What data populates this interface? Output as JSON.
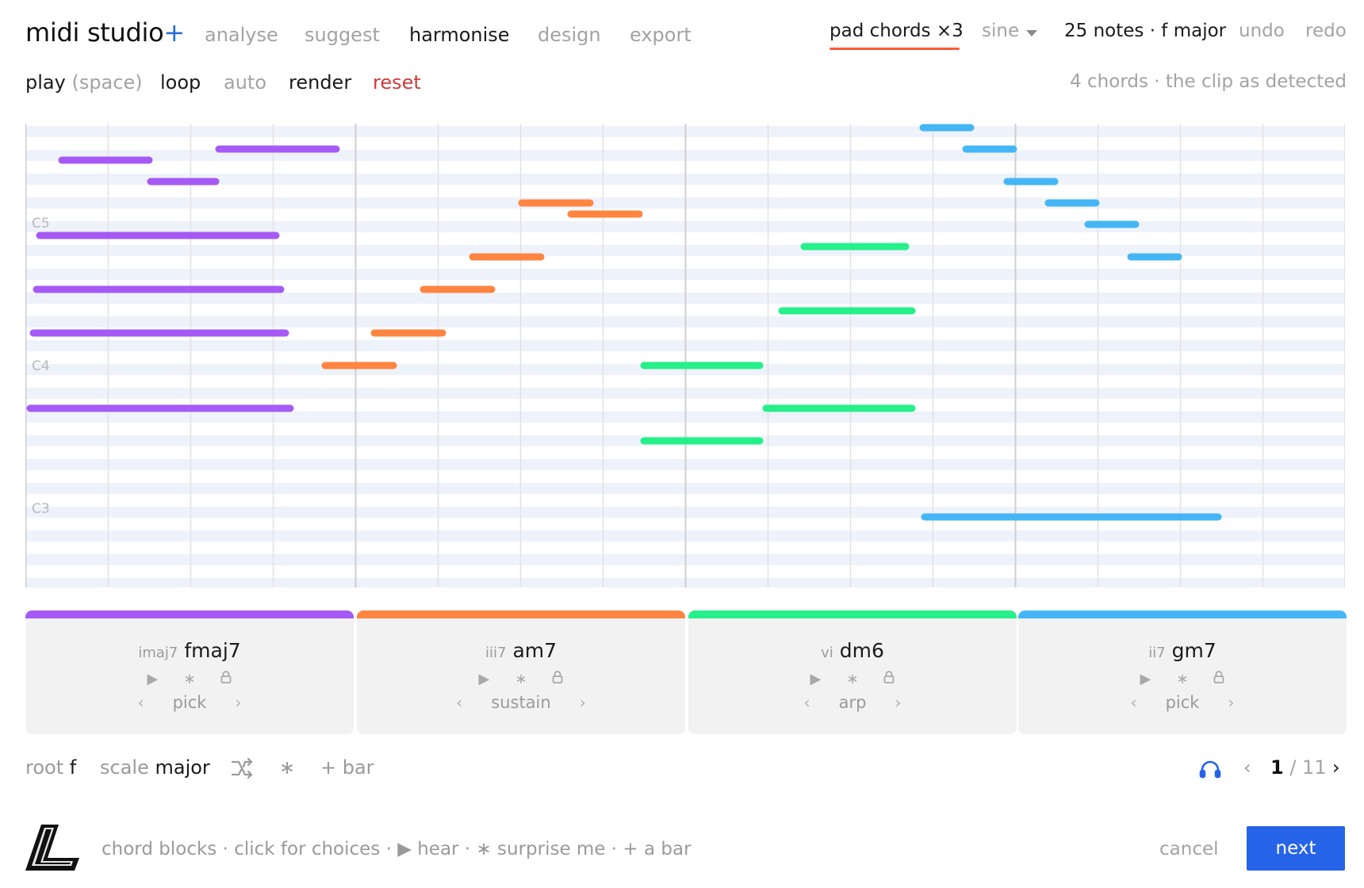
{
  "app": {
    "title": "midi studio",
    "title_plus": "+"
  },
  "nav": {
    "items": [
      "analyse",
      "suggest",
      "harmonise",
      "design",
      "export"
    ],
    "active": "harmonise"
  },
  "header_right": {
    "preset": "pad chords ×3",
    "waveform": "sine",
    "notes_info": "25 notes · f major",
    "undo": "undo",
    "redo": "redo"
  },
  "toolbar": {
    "play": "play",
    "play_hint": "(space)",
    "loop": "loop",
    "auto": "auto",
    "render": "render",
    "reset": "reset",
    "status": "4 chords · the clip as detected"
  },
  "roll": {
    "octave_labels": [
      "C5",
      "C4",
      "C3"
    ],
    "bars": 4,
    "beats_per_bar": 4
  },
  "chords": [
    {
      "roman": "imaj7",
      "name": "fmaj7",
      "mode": "pick",
      "color": "#a55af5"
    },
    {
      "roman": "iii7",
      "name": "am7",
      "mode": "sustain",
      "color": "#ff8540"
    },
    {
      "roman": "vi",
      "name": "dm6",
      "mode": "arp",
      "color": "#25f08a"
    },
    {
      "roman": "ii7",
      "name": "gm7",
      "mode": "pick",
      "color": "#45b6f5"
    }
  ],
  "card_icons": {
    "play": "▶",
    "surprise": "∗",
    "lock": "lock-icon",
    "prev": "‹",
    "next": "›"
  },
  "footer": {
    "root_label": "root",
    "root_value": "f",
    "scale_label": "scale",
    "scale_value": "major",
    "surprise": "∗",
    "add_bar": "+ bar",
    "page_current": "1",
    "page_total": "/ 11"
  },
  "bottom": {
    "help": "chord blocks · click for choices · ▶ hear · ∗ surprise me · + a bar",
    "cancel": "cancel",
    "next": "next"
  },
  "colors": {
    "accent": "#2563e8",
    "underline": "#ff5a36",
    "reset": "#d23a3a"
  }
}
